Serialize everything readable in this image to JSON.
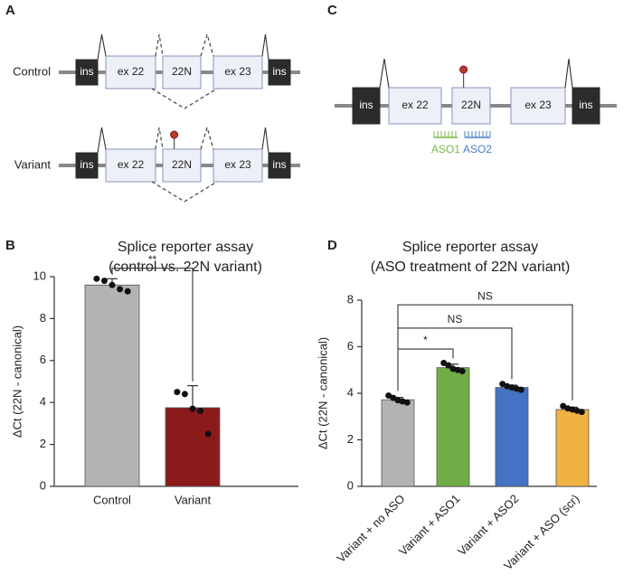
{
  "panels": {
    "a": "A",
    "b": "B",
    "c": "C",
    "d": "D"
  },
  "diagram_a": {
    "rows": [
      {
        "label": "Control",
        "exons": [
          "ins",
          "ex 22",
          "22N",
          "ex 23",
          "ins"
        ]
      },
      {
        "label": "Variant",
        "exons": [
          "ins",
          "ex 22",
          "22N",
          "ex 23",
          "ins"
        ]
      }
    ]
  },
  "diagram_c": {
    "exons": [
      "ins",
      "ex 22",
      "22N",
      "ex 23",
      "ins"
    ],
    "aso": [
      {
        "name": "ASO1",
        "color": "#7ab648"
      },
      {
        "name": "ASO2",
        "color": "#4a7fc1"
      }
    ]
  },
  "chart_data": [
    {
      "type": "bar",
      "title": [
        "Splice reporter assay",
        "(control vs. 22N variant)"
      ],
      "y_label": "ΔCt (22N - canonical)",
      "categories": [
        "Control",
        "Variant"
      ],
      "values": [
        9.6,
        3.75
      ],
      "errors": [
        0.3,
        1.05
      ],
      "points": [
        [
          9.9,
          9.8,
          9.6,
          9.4,
          9.3
        ],
        [
          4.5,
          4.4,
          3.7,
          3.6,
          2.5
        ]
      ],
      "colors": [
        "#b3b3b3",
        "#8b1a1a"
      ],
      "ylim": [
        0,
        10
      ],
      "yticks": [
        0,
        2,
        4,
        6,
        8,
        10
      ],
      "annotations": [
        "**"
      ]
    },
    {
      "type": "bar",
      "title": [
        "Splice reporter assay",
        "(ASO treatment of 22N variant)"
      ],
      "y_label": "ΔCt (22N - canonical)",
      "categories": [
        "Variant + no ASO",
        "Variant + ASO1",
        "Variant + ASO2",
        "Variant + ASO (scr)"
      ],
      "values": [
        3.72,
        5.1,
        4.25,
        3.3
      ],
      "errors": [
        0.1,
        0.15,
        0.1,
        0.1
      ],
      "points": [
        [
          3.9,
          3.8,
          3.7,
          3.65,
          3.6
        ],
        [
          5.3,
          5.2,
          5.05,
          5.0,
          4.95
        ],
        [
          4.4,
          4.3,
          4.25,
          4.2,
          4.15
        ],
        [
          3.45,
          3.35,
          3.3,
          3.25,
          3.2
        ]
      ],
      "colors": [
        "#b3b3b3",
        "#70ad47",
        "#4472c4",
        "#f0b342"
      ],
      "ylim": [
        0,
        8
      ],
      "yticks": [
        0,
        2,
        4,
        6,
        8
      ],
      "annotations": [
        "*",
        "NS",
        "NS"
      ]
    }
  ]
}
